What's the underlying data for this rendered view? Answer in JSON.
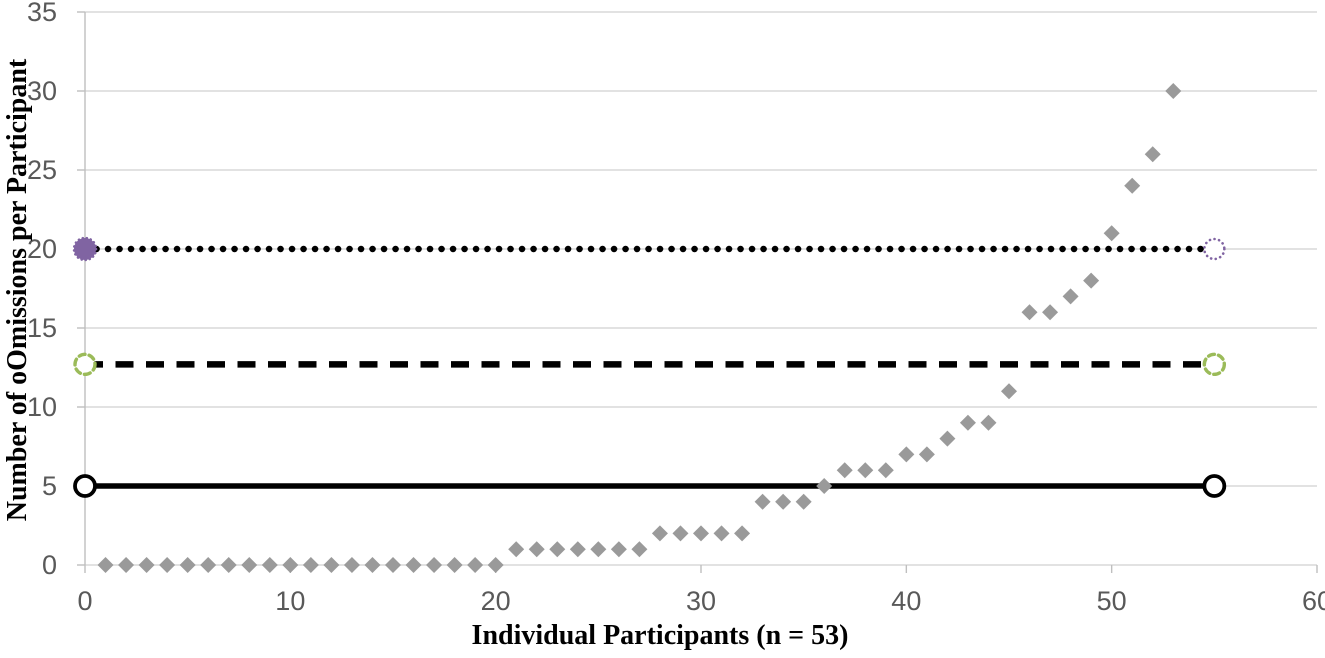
{
  "chart_data": {
    "type": "scatter",
    "title": "",
    "xlabel": "Individual Participants (n = 53)",
    "ylabel": "Number of oOmissions per Participant",
    "xlim": [
      0,
      60
    ],
    "ylim": [
      0,
      35
    ],
    "x_ticks": [
      0,
      10,
      20,
      30,
      40,
      50,
      60
    ],
    "y_ticks": [
      0,
      5,
      10,
      15,
      20,
      25,
      30,
      35
    ],
    "grid": "horizontal-gridlines",
    "legend": "none",
    "scatter_series": {
      "name": "individual-participant-omissions-sorted-ascending",
      "marker": "diamond",
      "color": "#9A9A9A",
      "x": [
        1,
        2,
        3,
        4,
        5,
        6,
        7,
        8,
        9,
        10,
        11,
        12,
        13,
        14,
        15,
        16,
        17,
        18,
        19,
        20,
        21,
        22,
        23,
        24,
        25,
        26,
        27,
        28,
        29,
        30,
        31,
        32,
        33,
        34,
        35,
        36,
        37,
        38,
        39,
        40,
        41,
        42,
        43,
        44,
        45,
        46,
        47,
        48,
        49,
        50,
        51,
        52,
        53
      ],
      "y": [
        0,
        0,
        0,
        0,
        0,
        0,
        0,
        0,
        0,
        0,
        0,
        0,
        0,
        0,
        0,
        0,
        0,
        0,
        0,
        0,
        1,
        1,
        1,
        1,
        1,
        1,
        1,
        2,
        2,
        2,
        2,
        2,
        4,
        4,
        4,
        5,
        6,
        6,
        6,
        7,
        7,
        8,
        9,
        9,
        11,
        16,
        16,
        17,
        18,
        21,
        24,
        26,
        30
      ]
    },
    "reference_lines": [
      {
        "name": "solid-reference-line",
        "y": 5,
        "x_start": 0,
        "x_end": 55,
        "line_style": "solid",
        "line_color": "#000000",
        "marker_left": {
          "shape": "open-circle",
          "color": "#000000"
        },
        "marker_right": {
          "shape": "open-circle",
          "color": "#000000"
        }
      },
      {
        "name": "dashed-reference-line",
        "y": 12.7,
        "x_start": 0,
        "x_end": 55,
        "line_style": "dashed",
        "line_color": "#000000",
        "marker_left": {
          "shape": "dashed-open-circle",
          "color": "#9BBB59"
        },
        "marker_right": {
          "shape": "dashed-open-circle",
          "color": "#9BBB59"
        }
      },
      {
        "name": "dotted-reference-line",
        "y": 20,
        "x_start": 0,
        "x_end": 55,
        "line_style": "dotted",
        "line_color": "#000000",
        "marker_left": {
          "shape": "filled-circle",
          "color": "#8064A2"
        },
        "marker_right": {
          "shape": "dotted-open-circle",
          "color": "#8064A2"
        }
      }
    ],
    "colors": {
      "background": "#FFFFFF",
      "gridline": "#D9D9D9",
      "axis_line": "#BFBFBF",
      "tick_label": "#595959",
      "axis_title": "#000000"
    }
  }
}
